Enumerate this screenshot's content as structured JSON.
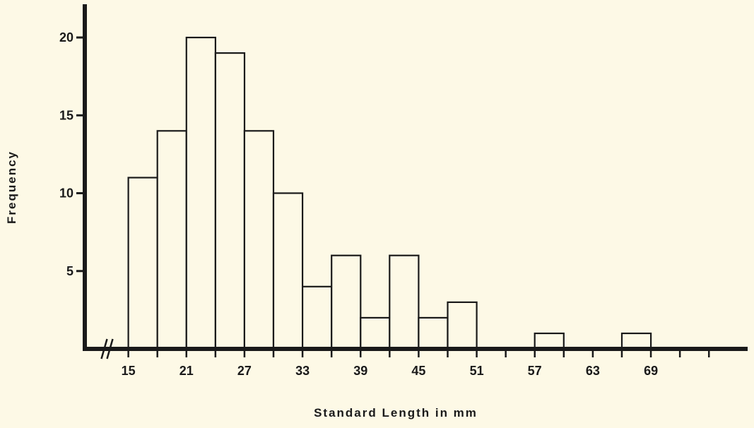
{
  "chart_data": {
    "type": "bar",
    "xlabel": "Standard Length in mm",
    "ylabel": "Frequency",
    "x_tick_labels": [
      "15",
      "21",
      "27",
      "33",
      "39",
      "45",
      "51",
      "57",
      "63",
      "69"
    ],
    "y_tick_labels": [
      "5",
      "10",
      "15",
      "20"
    ],
    "y_ticks": [
      5,
      10,
      15,
      20
    ],
    "ylim": [
      0,
      21.5
    ],
    "xlim": [
      10.5,
      79
    ],
    "bin_width": 3,
    "bins": [
      {
        "start": 15,
        "end": 18,
        "value": 11
      },
      {
        "start": 18,
        "end": 21,
        "value": 14
      },
      {
        "start": 21,
        "end": 24,
        "value": 20
      },
      {
        "start": 24,
        "end": 27,
        "value": 19
      },
      {
        "start": 27,
        "end": 30,
        "value": 14
      },
      {
        "start": 30,
        "end": 33,
        "value": 10
      },
      {
        "start": 33,
        "end": 36,
        "value": 4
      },
      {
        "start": 36,
        "end": 39,
        "value": 6
      },
      {
        "start": 39,
        "end": 42,
        "value": 2
      },
      {
        "start": 42,
        "end": 45,
        "value": 6
      },
      {
        "start": 45,
        "end": 48,
        "value": 2
      },
      {
        "start": 48,
        "end": 51,
        "value": 3
      },
      {
        "start": 57,
        "end": 60,
        "value": 1
      },
      {
        "start": 66,
        "end": 69,
        "value": 1
      }
    ],
    "axis_break": true,
    "grid": false,
    "colors": {
      "bar_fill": "#fdf9e6",
      "stroke": "#1a1a1a",
      "background": "#fdf9e6"
    }
  }
}
